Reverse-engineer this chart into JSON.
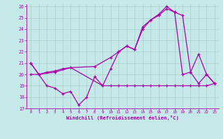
{
  "xlabel": "Windchill (Refroidissement éolien,°C)",
  "background_color": "#c5e8e8",
  "line_color": "#aa00aa",
  "grid_color": "#aacccc",
  "xlim": [
    -0.5,
    23.5
  ],
  "ylim": [
    17,
    26.2
  ],
  "yticks": [
    17,
    18,
    19,
    20,
    21,
    22,
    23,
    24,
    25,
    26
  ],
  "xticks": [
    0,
    1,
    2,
    3,
    4,
    5,
    6,
    7,
    8,
    9,
    10,
    11,
    12,
    13,
    14,
    15,
    16,
    17,
    18,
    19,
    20,
    21,
    22,
    23
  ],
  "series1_x": [
    0,
    1,
    2,
    3,
    4,
    5,
    6,
    7,
    8,
    9,
    10,
    11,
    12,
    13,
    14,
    15,
    16,
    17,
    18,
    19,
    20,
    21,
    22,
    23
  ],
  "series1_y": [
    21.0,
    20.0,
    19.0,
    18.8,
    18.3,
    18.5,
    17.3,
    18.0,
    19.8,
    19.0,
    20.5,
    22.0,
    22.5,
    22.2,
    24.0,
    24.8,
    25.3,
    26.0,
    25.5,
    20.0,
    20.2,
    21.8,
    20.0,
    19.2
  ],
  "series2_x": [
    0,
    1,
    2,
    3,
    4,
    5,
    9,
    10,
    11,
    12,
    13,
    14,
    15,
    16,
    17,
    18,
    19,
    20,
    21,
    22,
    23
  ],
  "series2_y": [
    20.0,
    20.0,
    20.2,
    20.3,
    20.5,
    20.6,
    19.0,
    19.0,
    19.0,
    19.0,
    19.0,
    19.0,
    19.0,
    19.0,
    19.0,
    19.0,
    19.0,
    19.0,
    19.0,
    19.0,
    19.2
  ],
  "series3_x": [
    0,
    1,
    3,
    5,
    8,
    10,
    11,
    12,
    13,
    14,
    15,
    16,
    17,
    18,
    19,
    20,
    21,
    22,
    23
  ],
  "series3_y": [
    21.0,
    20.0,
    20.2,
    20.6,
    20.7,
    21.5,
    22.0,
    22.5,
    22.2,
    24.2,
    24.8,
    25.2,
    25.8,
    25.5,
    25.2,
    20.2,
    19.2,
    20.0,
    19.2
  ]
}
